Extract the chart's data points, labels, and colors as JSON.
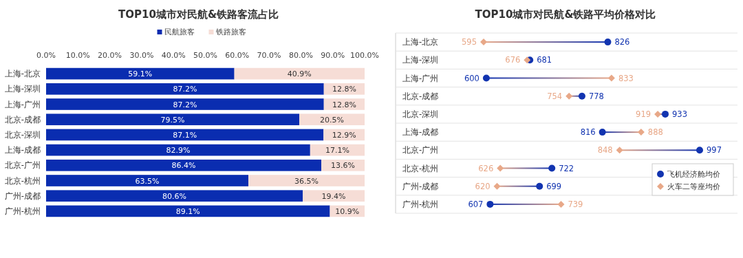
{
  "chart_data": [
    {
      "type": "bar",
      "orientation": "horizontal",
      "stacked": true,
      "title": "TOP10城市对民航&铁路客流占比",
      "categories": [
        "上海-北京",
        "上海-深圳",
        "上海-广州",
        "北京-成都",
        "北京-深圳",
        "上海-成都",
        "北京-广州",
        "北京-杭州",
        "广州-成都",
        "广州-杭州"
      ],
      "series": [
        {
          "name": "民航旅客",
          "color": "#0a2db0",
          "values": [
            59.1,
            87.2,
            87.2,
            79.5,
            87.1,
            82.9,
            86.4,
            63.5,
            80.6,
            89.1
          ],
          "value_labels": [
            "59.1%",
            "87.2%",
            "87.2%",
            "79.5%",
            "87.1%",
            "82.9%",
            "86.4%",
            "63.5%",
            "80.6%",
            "89.1%"
          ]
        },
        {
          "name": "铁路旅客",
          "color": "#f6ddd6",
          "values": [
            40.9,
            12.8,
            12.8,
            20.5,
            12.9,
            17.1,
            13.6,
            36.5,
            19.4,
            10.9
          ],
          "value_labels": [
            "40.9%",
            "12.8%",
            "12.8%",
            "20.5%",
            "12.9%",
            "17.1%",
            "13.6%",
            "36.5%",
            "19.4%",
            "10.9%"
          ]
        }
      ],
      "xlim": [
        0,
        100
      ],
      "xticks": [
        {
          "value": 0,
          "label": "0.0%"
        },
        {
          "value": 10,
          "label": "10.0%"
        },
        {
          "value": 20,
          "label": "20.0%"
        },
        {
          "value": 30,
          "label": "30.0%"
        },
        {
          "value": 40,
          "label": "40.0%"
        },
        {
          "value": 50,
          "label": "50.0%"
        },
        {
          "value": 60,
          "label": "60.0%"
        },
        {
          "value": 70,
          "label": "70.0%"
        },
        {
          "value": 80,
          "label": "80.0%"
        },
        {
          "value": 90,
          "label": "90.0%"
        },
        {
          "value": 100,
          "label": "100.0%"
        }
      ],
      "legend": "top",
      "grid": false
    },
    {
      "type": "scatter",
      "orientation": "horizontal",
      "title": "TOP10城市对民航&铁路平均价格对比",
      "categories": [
        "上海-北京",
        "上海-深圳",
        "上海-广州",
        "北京-成都",
        "北京-深圳",
        "上海-成都",
        "北京-广州",
        "北京-杭州",
        "广州-成都",
        "广州-杭州"
      ],
      "series": [
        {
          "name": "飞机经济舱均价",
          "color": "#1234b0",
          "marker": "circle",
          "values": [
            826,
            681,
            600,
            778,
            933,
            816,
            997,
            722,
            699,
            607
          ]
        },
        {
          "name": "火车二等座均价",
          "color": "#e8a888",
          "marker": "diamond",
          "values": [
            595,
            676,
            833,
            754,
            919,
            888,
            848,
            626,
            620,
            739
          ]
        }
      ],
      "data_labels": true,
      "legend": "bottom right",
      "grid": "y"
    }
  ]
}
